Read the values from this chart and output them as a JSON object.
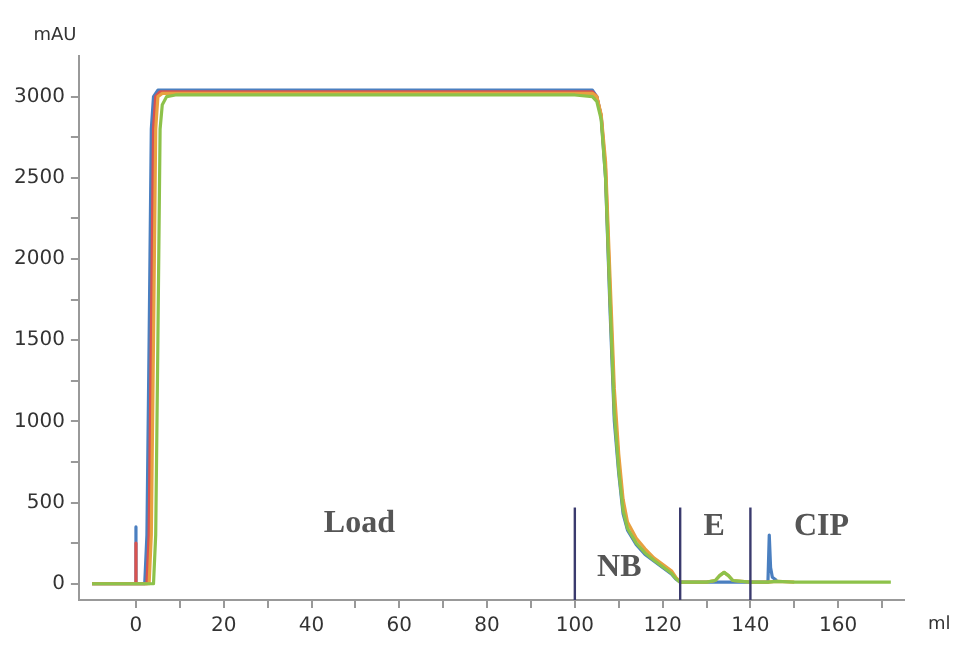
{
  "chart_data": {
    "type": "line",
    "xlabel": "ml",
    "ylabel": "mAU",
    "marker": "none",
    "legend": false,
    "xlim": [
      -13,
      175
    ],
    "xticks": [
      0,
      {
        "value": 10,
        "label": null
      },
      20,
      {
        "value": 30,
        "label": null
      },
      40,
      {
        "value": 50,
        "label": null
      },
      60,
      {
        "value": 70,
        "label": null
      },
      80,
      {
        "value": 90,
        "label": null
      },
      100,
      {
        "value": 110,
        "label": null
      },
      120,
      {
        "value": 130,
        "label": null
      },
      140,
      {
        "value": 150,
        "label": null
      },
      160,
      {
        "value": 170,
        "label": null
      }
    ],
    "ylim": [
      -100,
      3250
    ],
    "yticks": [
      0,
      {
        "value": 250,
        "label": null
      },
      500,
      {
        "value": 750,
        "label": null
      },
      1000,
      {
        "value": 1250,
        "label": null
      },
      1500,
      {
        "value": 1750,
        "label": null
      },
      2000,
      {
        "value": 2250,
        "label": null
      },
      2500,
      {
        "value": 2750,
        "label": null
      },
      3000
    ],
    "series": [
      {
        "color": "#8dc24a",
        "x": [
          -10,
          0,
          4,
          4.5,
          5,
          5.5,
          6,
          7,
          9,
          20,
          60,
          100,
          104,
          105,
          106,
          107,
          108,
          109,
          110,
          111,
          112,
          114,
          116,
          118,
          120,
          122,
          123,
          124,
          130,
          132,
          133,
          134,
          135,
          136,
          140,
          144,
          146,
          150,
          160,
          172
        ],
        "values": [
          0,
          0,
          0,
          300,
          1500,
          2800,
          2950,
          3000,
          3010,
          3010,
          3010,
          3010,
          3000,
          2970,
          2860,
          2500,
          1750,
          1050,
          700,
          450,
          340,
          250,
          190,
          145,
          105,
          65,
          32,
          10,
          10,
          20,
          50,
          70,
          50,
          20,
          10,
          10,
          15,
          10,
          10,
          10
        ]
      },
      {
        "color": "#e8a040",
        "x": [
          -10,
          0,
          3,
          3.5,
          4,
          4.5,
          5,
          6,
          8,
          20,
          60,
          100,
          104,
          105,
          106,
          107,
          108,
          109,
          110,
          111,
          112,
          114,
          116,
          118,
          120,
          122,
          123,
          124,
          130,
          132,
          133,
          134,
          135,
          136,
          140,
          144,
          146,
          150
        ],
        "values": [
          0,
          0,
          0,
          300,
          1500,
          2800,
          3000,
          3020,
          3020,
          3020,
          3020,
          3020,
          3020,
          3000,
          2890,
          2600,
          1900,
          1200,
          800,
          520,
          380,
          280,
          215,
          160,
          120,
          80,
          40,
          10,
          10,
          20,
          50,
          70,
          50,
          20,
          10,
          10,
          15,
          10
        ]
      },
      {
        "color": "#d9534f",
        "x": [
          -10,
          0,
          0,
          0,
          2.5,
          3,
          3.5,
          4,
          4.5,
          5.5,
          8,
          20,
          60,
          100,
          104,
          105,
          106,
          107,
          108,
          109,
          110,
          111,
          112
        ],
        "values": [
          0,
          0,
          250,
          0,
          0,
          300,
          1500,
          2800,
          3000,
          3030,
          3030,
          3030,
          3030,
          3030,
          3030,
          3000,
          2880,
          2550,
          1800,
          1100,
          750,
          480,
          360
        ]
      },
      {
        "color": "#4a7fc0",
        "x": [
          -10,
          0,
          0,
          0,
          2,
          2.5,
          3,
          3.5,
          4,
          5,
          7,
          20,
          60,
          100,
          104,
          105,
          106,
          107,
          108,
          109,
          110,
          111,
          112,
          114,
          116,
          118,
          120,
          122,
          123,
          124,
          140,
          144,
          144.3,
          144.6,
          145,
          146
        ],
        "values": [
          0,
          0,
          350,
          0,
          0,
          300,
          1500,
          2800,
          3000,
          3040,
          3040,
          3040,
          3040,
          3040,
          3040,
          3000,
          2880,
          2500,
          1700,
          1000,
          680,
          430,
          330,
          240,
          180,
          140,
          100,
          60,
          30,
          10,
          10,
          10,
          300,
          100,
          40,
          20
        ]
      }
    ],
    "ref_lines": [
      {
        "axis": "x",
        "value": 100,
        "color": "#3b3b6e"
      },
      {
        "axis": "x",
        "value": 124,
        "color": "#3b3b6e"
      },
      {
        "axis": "x",
        "value": 140,
        "color": "#3b3b6e"
      }
    ],
    "annotations": [
      "Load",
      "NB",
      "E",
      "CIP"
    ]
  }
}
